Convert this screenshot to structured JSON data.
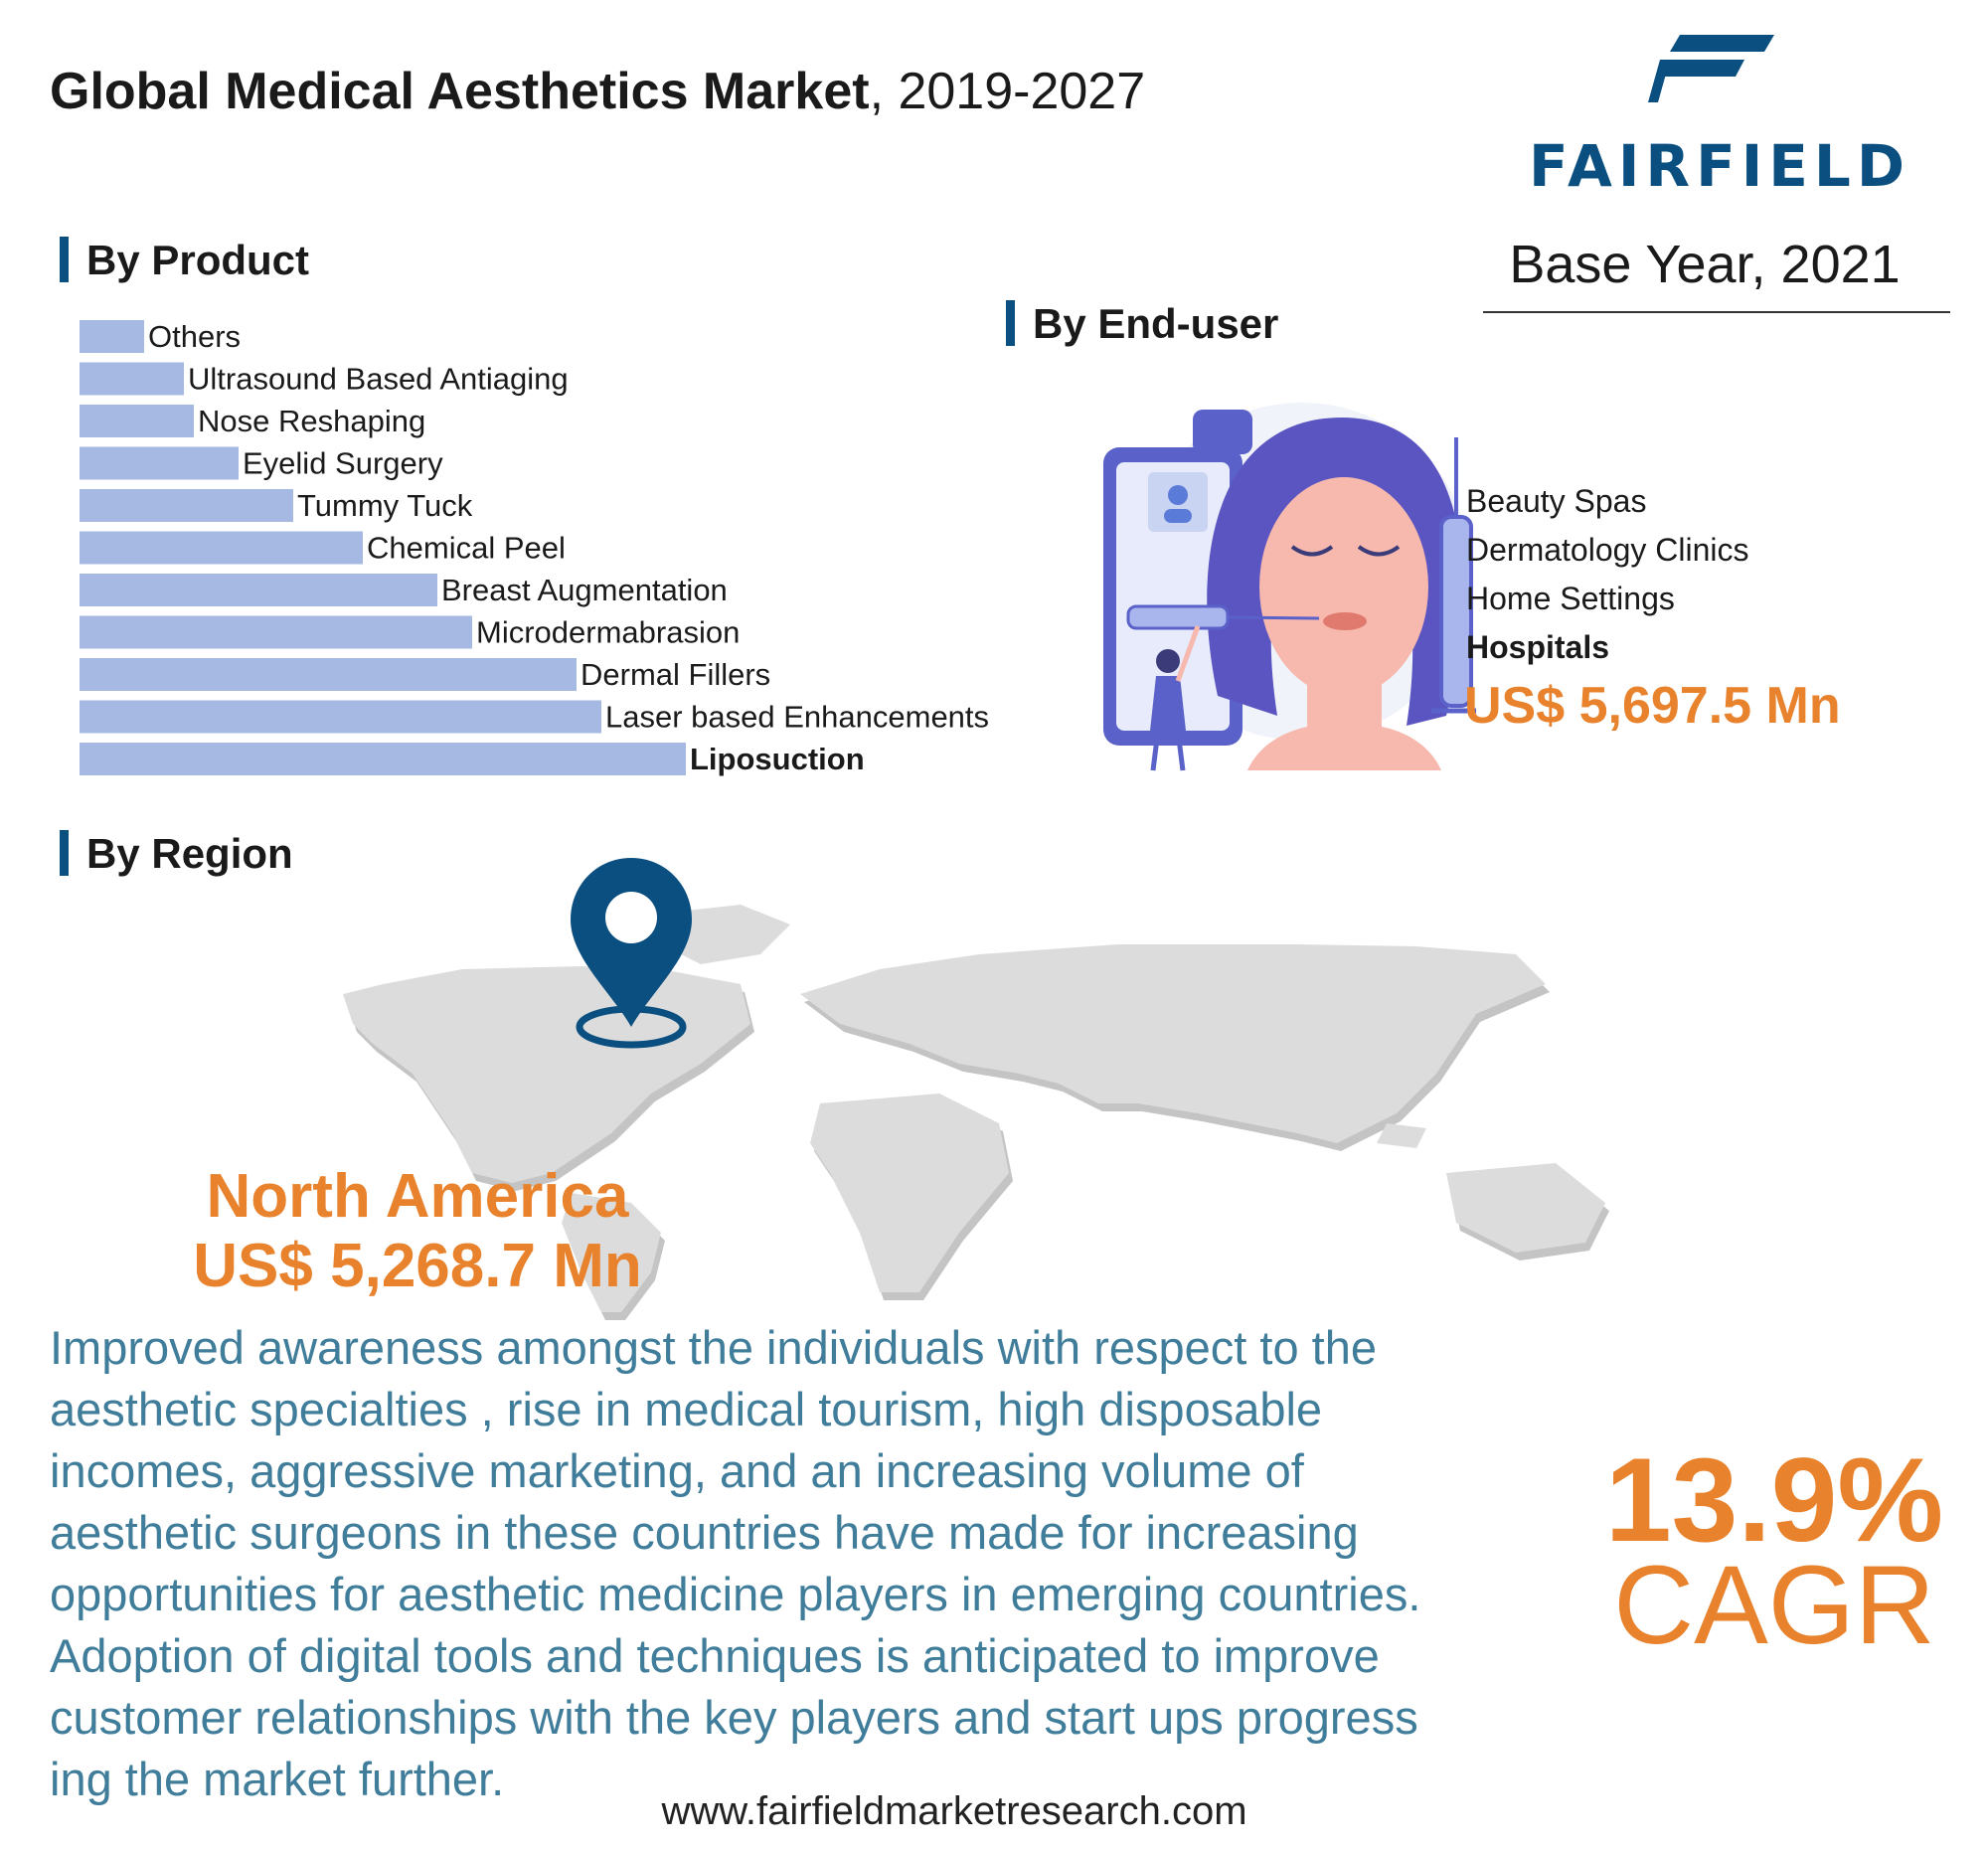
{
  "header": {
    "title_bold": "Global Medical Aesthetics Market",
    "title_rest": ", 2019-2027",
    "logo_text": "FAIRFIELD",
    "base_year": "Base Year, 2021"
  },
  "sections": {
    "product": "By Product",
    "enduser": "By End-user",
    "region": "By Region"
  },
  "colors": {
    "bar": "#a5b9e2",
    "accent": "#e8822c",
    "brand": "#0a4f80",
    "text_blue": "#3f7d9a"
  },
  "chart_data": {
    "type": "bar",
    "orientation": "horizontal",
    "categories": [
      "Others",
      "Ultrasound Based Antiaging",
      "Nose Reshaping",
      "Eyelid Surgery",
      "Tummy Tuck",
      "Chemical Peel",
      "Breast Augmentation",
      "Microdermabrasion",
      "Dermal Fillers",
      "Laser based Enhancements",
      "Liposuction"
    ],
    "values": [
      6.5,
      10.5,
      11.5,
      16,
      21.5,
      28.5,
      36,
      39.5,
      50,
      52.5,
      61
    ],
    "highlight": "Liposuction",
    "xlim": [
      0,
      100
    ],
    "grid": false
  },
  "enduser": {
    "items": [
      {
        "label": "Beauty Spas",
        "highlight": false
      },
      {
        "label": "Dermatology Clinics",
        "highlight": false
      },
      {
        "label": "Home Settings",
        "highlight": false
      },
      {
        "label": "Hospitals",
        "highlight": true
      }
    ],
    "value": "US$ 5,697.5 Mn"
  },
  "region": {
    "name": "North America",
    "value": "US$ 5,268.7 Mn"
  },
  "description": [
    "Improved awareness amongst the individuals with respect to the",
    "aesthetic specialties , rise in medical tourism, high disposable",
    "incomes, aggressive marketing, and an increasing volume of",
    "aesthetic surgeons in these countries have made for increasing",
    "opportunities for aesthetic medicine players in emerging countries.",
    "Adoption of digital tools and techniques is anticipated to improve",
    "customer relationships with the key  players and start ups progress",
    "ing the market further."
  ],
  "cagr": {
    "value": "13.9%",
    "label": "CAGR"
  },
  "footer": {
    "website": "www.fairfieldmarketresearch.com"
  }
}
